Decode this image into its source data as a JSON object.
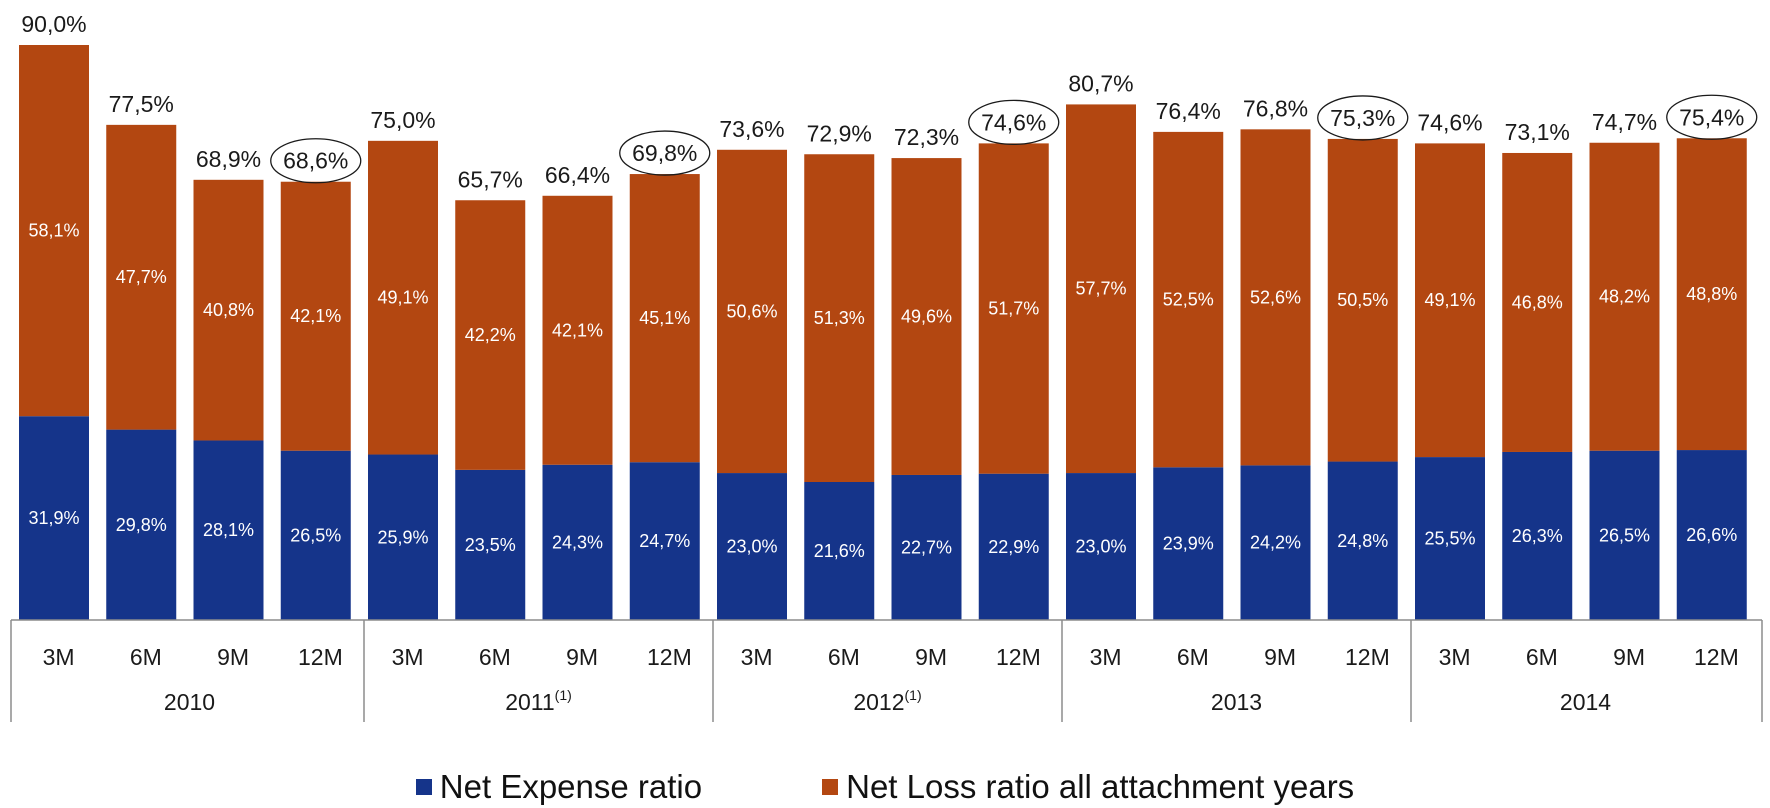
{
  "colors": {
    "expense": "#15348a",
    "loss": "#b34711",
    "axis": "#8c8c8c"
  },
  "chart_data": {
    "type": "bar",
    "stacked": true,
    "groups": [
      {
        "label": "2010",
        "sup": ""
      },
      {
        "label": "2011",
        "sup": "(1)"
      },
      {
        "label": "2012",
        "sup": "(1)"
      },
      {
        "label": "2013",
        "sup": ""
      },
      {
        "label": "2014",
        "sup": ""
      }
    ],
    "categories": [
      "3M",
      "6M",
      "9M",
      "12M",
      "3M",
      "6M",
      "9M",
      "12M",
      "3M",
      "6M",
      "9M",
      "12M",
      "3M",
      "6M",
      "9M",
      "12M",
      "3M",
      "6M",
      "9M",
      "12M"
    ],
    "series": [
      {
        "name": "Net Expense ratio",
        "values": [
          31.9,
          29.8,
          28.1,
          26.5,
          25.9,
          23.5,
          24.3,
          24.7,
          23.0,
          21.6,
          22.7,
          22.9,
          23.0,
          23.9,
          24.2,
          24.8,
          25.5,
          26.3,
          26.5,
          26.6
        ],
        "labels": [
          "31,9%",
          "29,8%",
          "28,1%",
          "26,5%",
          "25,9%",
          "23,5%",
          "24,3%",
          "24,7%",
          "23,0%",
          "21,6%",
          "22,7%",
          "22,9%",
          "23,0%",
          "23,9%",
          "24,2%",
          "24,8%",
          "25,5%",
          "26,3%",
          "26,5%",
          "26,6%"
        ]
      },
      {
        "name": "Net Loss ratio all attachment years",
        "values": [
          58.1,
          47.7,
          40.8,
          42.1,
          49.1,
          42.2,
          42.1,
          45.1,
          50.6,
          51.3,
          49.6,
          51.7,
          57.7,
          52.5,
          52.6,
          50.5,
          49.1,
          46.8,
          48.2,
          48.8
        ],
        "labels": [
          "58,1%",
          "47,7%",
          "40,8%",
          "42,1%",
          "49,1%",
          "42,2%",
          "42,1%",
          "45,1%",
          "50,6%",
          "51,3%",
          "49,6%",
          "51,7%",
          "57,7%",
          "52,5%",
          "52,6%",
          "50,5%",
          "49,1%",
          "46,8%",
          "48,2%",
          "48,8%"
        ]
      }
    ],
    "totals": [
      90.0,
      77.5,
      68.9,
      68.6,
      75.0,
      65.7,
      66.4,
      69.8,
      73.6,
      72.9,
      72.3,
      74.6,
      80.7,
      76.4,
      76.8,
      75.3,
      74.6,
      73.1,
      74.7,
      75.4
    ],
    "total_labels": [
      "90,0%",
      "77,5%",
      "68,9%",
      "68,6%",
      "75,0%",
      "65,7%",
      "66,4%",
      "69,8%",
      "73,6%",
      "72,9%",
      "72,3%",
      "74,6%",
      "80,7%",
      "76,4%",
      "76,8%",
      "75,3%",
      "74,6%",
      "73,1%",
      "74,7%",
      "75,4%"
    ],
    "circled_totals": [
      3,
      7,
      11,
      15,
      19
    ],
    "ylim": [
      0,
      90
    ],
    "grid": false,
    "legend_position": "bottom"
  }
}
